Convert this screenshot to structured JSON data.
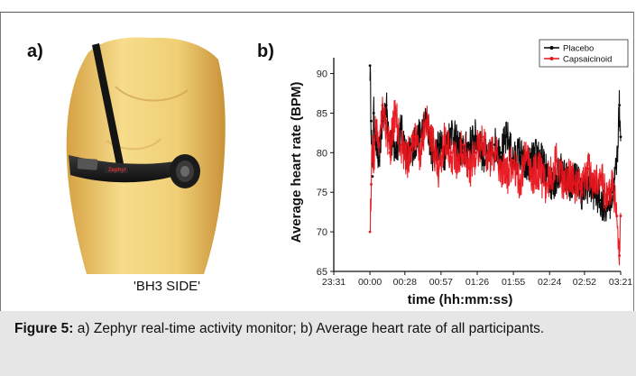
{
  "panel_labels": {
    "a": "a)",
    "b": "b)"
  },
  "device_caption": "'BH3 SIDE'",
  "figure_caption": {
    "label": "Figure 5:",
    "text": " a) Zephyr real-time activity monitor; b) Average heart rate of all participants."
  },
  "colors": {
    "placebo": "#000000",
    "capsaicinoid": "#e8141c",
    "caption_bg": "#e6e6e6"
  },
  "chart_data": {
    "type": "line",
    "title": "",
    "xlabel": "time (hh:mm:ss)",
    "ylabel": "Average heart rate (BPM)",
    "ylim": [
      65,
      92
    ],
    "yticks": [
      65,
      70,
      75,
      80,
      85,
      90
    ],
    "xticks": [
      "23:31",
      "00:00",
      "00:28",
      "00:57",
      "01:26",
      "01:55",
      "02:24",
      "02:52",
      "03:21"
    ],
    "x_tick_minutes": [
      -29,
      0,
      28,
      57,
      86,
      115,
      144,
      172,
      201
    ],
    "legend": {
      "placement": "top-right"
    },
    "grid": false,
    "series": [
      {
        "name": "Placebo",
        "color": "#000000",
        "x_minutes": [
          0,
          1,
          2,
          3,
          5,
          7,
          10,
          13,
          16,
          20,
          25,
          30,
          35,
          40,
          45,
          50,
          55,
          60,
          65,
          70,
          75,
          80,
          85,
          90,
          95,
          100,
          105,
          110,
          115,
          120,
          125,
          130,
          135,
          140,
          145,
          150,
          155,
          160,
          165,
          170,
          175,
          180,
          185,
          190,
          195,
          198,
          200,
          201
        ],
        "values": [
          91,
          84,
          77,
          85,
          81,
          79,
          84,
          86,
          82,
          80,
          83,
          79,
          81,
          82,
          84,
          80,
          81,
          80,
          83,
          81,
          80,
          81,
          82,
          80,
          79,
          81,
          80,
          82,
          79,
          80,
          78,
          79,
          80,
          78,
          76,
          77,
          78,
          76,
          77,
          75,
          76,
          75,
          74,
          73,
          75,
          79,
          86,
          82
        ]
      },
      {
        "name": "Capsaicinoid",
        "color": "#e8141c",
        "x_minutes": [
          0,
          1,
          2,
          3,
          5,
          7,
          10,
          13,
          16,
          20,
          25,
          30,
          35,
          40,
          45,
          50,
          55,
          60,
          65,
          70,
          75,
          80,
          85,
          90,
          95,
          100,
          105,
          110,
          115,
          120,
          125,
          130,
          135,
          140,
          145,
          150,
          155,
          160,
          165,
          170,
          175,
          180,
          185,
          190,
          195,
          198,
          200,
          201
        ],
        "values": [
          70,
          76,
          82,
          79,
          84,
          81,
          86,
          83,
          80,
          85,
          81,
          79,
          82,
          80,
          84,
          81,
          78,
          82,
          80,
          79,
          81,
          78,
          80,
          82,
          79,
          80,
          78,
          77,
          79,
          76,
          80,
          77,
          78,
          76,
          77,
          79,
          76,
          77,
          76,
          75,
          78,
          76,
          77,
          74,
          76,
          72,
          67,
          72
        ]
      }
    ]
  }
}
